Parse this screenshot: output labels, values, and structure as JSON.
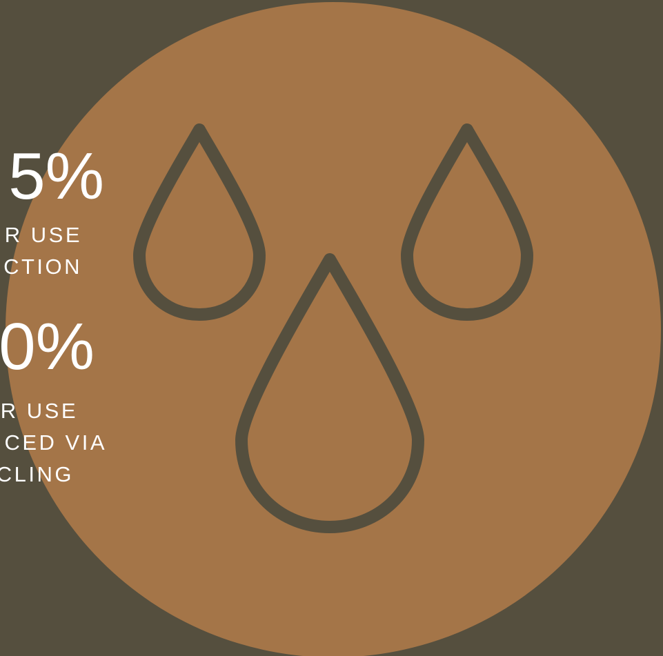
{
  "colors": {
    "background": "#554f3e",
    "circle": "#a47548",
    "drop_stroke": "#554f3e",
    "text": "#ffffff"
  },
  "stats": [
    {
      "number": "5%",
      "label_lines": [
        "R USE",
        "CTION"
      ]
    },
    {
      "number": "0%",
      "label_lines": [
        "R USE",
        "CED VIA",
        "CLING"
      ]
    }
  ],
  "icon": "water-drops-icon"
}
